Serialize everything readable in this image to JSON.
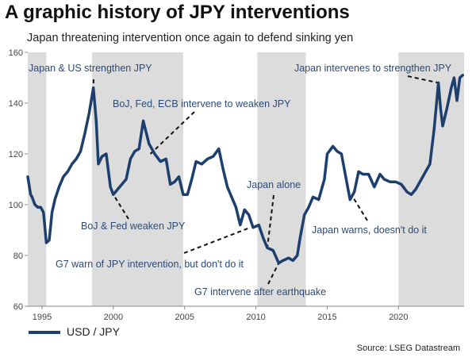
{
  "chart_data": {
    "type": "line",
    "title": "A graphic history of JPY interventions",
    "subtitle": "Japan threatening intervention once again to defend sinking yen",
    "legend_label": "USD / JPY",
    "source": "Source: LSEG Datastream",
    "xlim": [
      1994,
      2024.6
    ],
    "ylim": [
      60,
      160
    ],
    "x_ticks": [
      1995,
      2000,
      2005,
      2010,
      2015,
      2020
    ],
    "y_ticks": [
      60,
      80,
      100,
      120,
      140,
      160
    ],
    "line_color": "#1d3f6e",
    "shade_color": "#dcdcdc",
    "intervention_periods": [
      [
        1994,
        1995.3
      ],
      [
        1998.5,
        2004.9
      ],
      [
        2010.1,
        2013.5
      ],
      [
        2020,
        2024.6
      ]
    ],
    "series": [
      {
        "name": "USD / JPY",
        "x": [
          1994.0,
          1994.2,
          1994.3,
          1994.5,
          1994.7,
          1994.9,
          1995.1,
          1995.3,
          1995.5,
          1995.7,
          1995.9,
          1996.2,
          1996.5,
          1996.8,
          1997.1,
          1997.4,
          1997.7,
          1998.0,
          1998.3,
          1998.6,
          1998.8,
          1998.95,
          1999.2,
          1999.5,
          1999.8,
          2000.0,
          2000.3,
          2000.6,
          2000.9,
          2001.2,
          2001.5,
          2001.8,
          2002.1,
          2002.5,
          2002.9,
          2003.3,
          2003.7,
          2004.0,
          2004.3,
          2004.6,
          2004.9,
          2005.2,
          2005.5,
          2005.8,
          2006.2,
          2006.6,
          2007.0,
          2007.4,
          2007.7,
          2008.0,
          2008.3,
          2008.6,
          2008.9,
          2009.2,
          2009.5,
          2009.8,
          2010.2,
          2010.5,
          2010.8,
          2011.2,
          2011.6,
          2011.9,
          2012.3,
          2012.6,
          2012.9,
          2013.1,
          2013.4,
          2013.7,
          2014.0,
          2014.4,
          2014.8,
          2015.0,
          2015.4,
          2015.7,
          2016.0,
          2016.3,
          2016.6,
          2016.9,
          2017.2,
          2017.5,
          2017.9,
          2018.3,
          2018.7,
          2019.0,
          2019.4,
          2019.8,
          2020.2,
          2020.6,
          2020.9,
          2021.2,
          2021.6,
          2021.9,
          2022.2,
          2022.5,
          2022.8,
          2022.95,
          2023.1,
          2023.4,
          2023.7,
          2023.9,
          2024.1,
          2024.3,
          2024.5
        ],
        "y": [
          111,
          104,
          103,
          100,
          99,
          99,
          97,
          85,
          86,
          97,
          102,
          107,
          111,
          113,
          116,
          118,
          121,
          128,
          136,
          146,
          133,
          116,
          119,
          120,
          107,
          104,
          106,
          108,
          110,
          118,
          121,
          122,
          133,
          124,
          120,
          117,
          118,
          108,
          109,
          111,
          104,
          104,
          110,
          117,
          116,
          118,
          119,
          122,
          114,
          107,
          103,
          99,
          92,
          98,
          96,
          91,
          92,
          87,
          83,
          82,
          77,
          78,
          79,
          78,
          80,
          87,
          96,
          99,
          103,
          102,
          110,
          120,
          123,
          121,
          120,
          111,
          102,
          105,
          113,
          112,
          112,
          107,
          112,
          110,
          109,
          109,
          108,
          105,
          104,
          106,
          110,
          113,
          116,
          130,
          148,
          138,
          131,
          138,
          146,
          150,
          141,
          150,
          151
        ],
        "values": [
          111,
          104,
          103,
          100,
          99,
          99,
          97,
          85,
          86,
          97,
          102,
          107,
          111,
          113,
          116,
          118,
          121,
          128,
          136,
          146,
          133,
          116,
          119,
          120,
          107,
          104,
          106,
          108,
          110,
          118,
          121,
          122,
          133,
          124,
          120,
          117,
          118,
          108,
          109,
          111,
          104,
          104,
          110,
          117,
          116,
          118,
          119,
          122,
          114,
          107,
          103,
          99,
          92,
          98,
          96,
          91,
          92,
          87,
          83,
          82,
          77,
          78,
          79,
          78,
          80,
          87,
          96,
          99,
          103,
          102,
          110,
          120,
          123,
          121,
          120,
          111,
          102,
          105,
          113,
          112,
          112,
          107,
          112,
          110,
          109,
          109,
          108,
          105,
          104,
          106,
          110,
          113,
          116,
          130,
          148,
          138,
          131,
          138,
          146,
          150,
          141,
          150,
          151
        ]
      }
    ],
    "annotations": [
      {
        "text": "Japan & US strengthen JPY",
        "x": 1998.6,
        "y": 146
      },
      {
        "text": "BoJ, Fed, ECB intervene to weaken JPY",
        "x": 2002.6,
        "y": 120
      },
      {
        "text": "Japan intervenes to strengthen JPY",
        "x": 2022.8,
        "y": 148
      },
      {
        "text": "Japan alone",
        "x": 2010.8,
        "y": 83
      },
      {
        "text": "BoJ & Fed weaken JPY",
        "x": 2000.0,
        "y": 104
      },
      {
        "text": "G7 warn of JPY intervention, but don't do it",
        "x": 2009.6,
        "y": 91
      },
      {
        "text": "Japan warns, doesn't do it",
        "x": 2016.8,
        "y": 103
      },
      {
        "text": "G7 intervene after earthquake",
        "x": 2011.6,
        "y": 77
      }
    ]
  }
}
